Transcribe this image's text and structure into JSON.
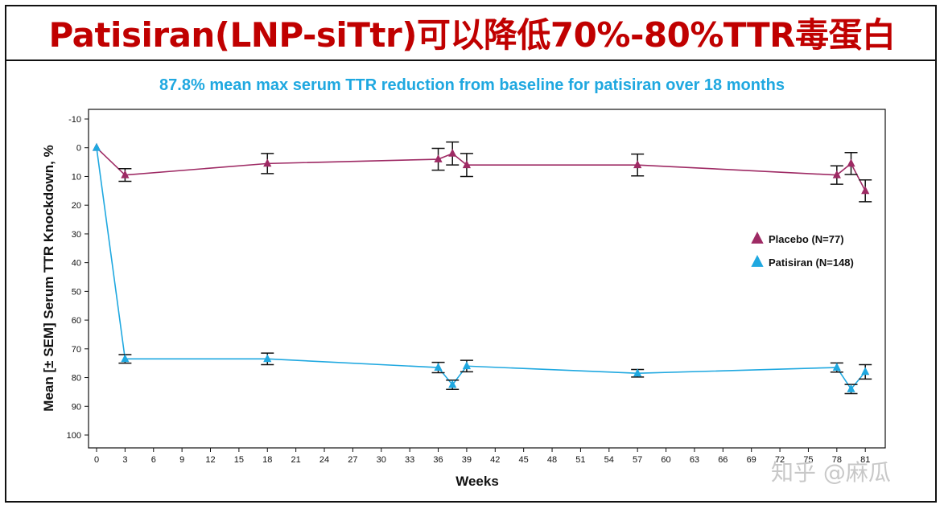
{
  "slide": {
    "title": "Patisiran(LNP-siTtr)可以降低70%-80%TTR毒蛋白",
    "watermark": "知乎 @麻瓜"
  },
  "chart_data": {
    "type": "line",
    "title": "87.8% mean max serum TTR reduction from baseline for patisiran over 18 months",
    "xlabel": "Weeks",
    "ylabel": "Mean [± SEM] Serum TTR Knockdown, %",
    "xlim": [
      0,
      82
    ],
    "ylim": [
      -10,
      100
    ],
    "y_inverted": true,
    "xticks": [
      0,
      3,
      6,
      9,
      12,
      15,
      18,
      21,
      24,
      27,
      30,
      33,
      36,
      39,
      42,
      45,
      48,
      51,
      54,
      57,
      60,
      63,
      66,
      69,
      72,
      75,
      78,
      81
    ],
    "yticks": [
      -10,
      0,
      10,
      20,
      30,
      40,
      50,
      60,
      70,
      80,
      90,
      100
    ],
    "legend_position": "right",
    "grid": false,
    "series": [
      {
        "name": "Placebo (N=77)",
        "color": "#9e2a64",
        "x": [
          0,
          3,
          18,
          36,
          37.5,
          39,
          57,
          78,
          79.5,
          81
        ],
        "y": [
          0,
          9.5,
          5.5,
          4,
          2,
          6,
          6,
          9.5,
          5.5,
          15
        ],
        "err": [
          0,
          2.2,
          3.5,
          3.8,
          4,
          4,
          3.8,
          3.2,
          3.8,
          3.8
        ]
      },
      {
        "name": "Patisiran (N=148)",
        "color": "#1fa8e0",
        "x": [
          0,
          3,
          18,
          36,
          37.5,
          39,
          57,
          78,
          79.5,
          81
        ],
        "y": [
          0,
          73.5,
          73.5,
          76.5,
          82.5,
          76,
          78.5,
          76.5,
          84,
          78
        ],
        "err": [
          0,
          1.5,
          2,
          1.8,
          1.6,
          2,
          1.3,
          1.6,
          1.6,
          2.5
        ]
      }
    ]
  }
}
